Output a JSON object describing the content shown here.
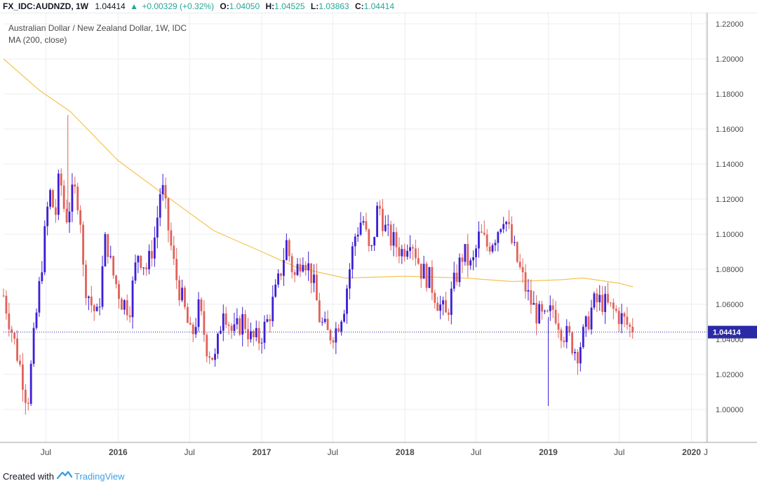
{
  "header": {
    "symbol": "FX_IDC:AUDNZD, 1W",
    "last": "1.04414",
    "change": "+0.00329 (+0.32%)",
    "o_label": "O:",
    "o_value": "1.04050",
    "h_label": "H:",
    "h_value": "1.04525",
    "l_label": "L:",
    "l_value": "1.03863",
    "c_label": "C:",
    "c_value": "1.04414"
  },
  "legend": {
    "title": "Australian Dollar / New Zealand Dollar, 1W, IDC",
    "indicator": "MA (200, close)"
  },
  "footer": {
    "created_with": "Created with",
    "brand": "TradingView"
  },
  "colors": {
    "up": "#3d1fd6",
    "down": "#e0625a",
    "ma": "#f5c451",
    "grid": "#e9edf2",
    "price_line": "#2a2aa6",
    "price_tag": "#2a2aa6"
  },
  "chart_data": {
    "type": "candlestick",
    "title": "Australian Dollar / New Zealand Dollar, 1W, IDC",
    "interval": "1W",
    "y_ticks": [
      "1.22000",
      "1.20000",
      "1.18000",
      "1.16000",
      "1.14000",
      "1.12000",
      "1.10000",
      "1.08000",
      "1.06000",
      "1.04000",
      "1.02000",
      "1.00000"
    ],
    "x_ticks": [
      "Jul",
      "2016",
      "Jul",
      "2017",
      "Jul",
      "2018",
      "Jul",
      "2019",
      "Jul",
      "2020",
      "J"
    ],
    "ylim": [
      0.98,
      1.223
    ],
    "last_price": 1.04414,
    "last_price_label": "1.04414",
    "ma_label": "MA (200, close)",
    "ma": [
      {
        "t": "2015-03-15",
        "v": 1.2
      },
      {
        "t": "2015-06-15",
        "v": 1.182
      },
      {
        "t": "2015-09-01",
        "v": 1.17
      },
      {
        "t": "2016-01-01",
        "v": 1.142
      },
      {
        "t": "2016-05-01",
        "v": 1.122
      },
      {
        "t": "2016-09-01",
        "v": 1.102
      },
      {
        "t": "2017-01-01",
        "v": 1.09
      },
      {
        "t": "2017-04-01",
        "v": 1.081
      },
      {
        "t": "2017-08-01",
        "v": 1.075
      },
      {
        "t": "2018-01-01",
        "v": 1.076
      },
      {
        "t": "2018-06-01",
        "v": 1.075
      },
      {
        "t": "2018-10-01",
        "v": 1.073
      },
      {
        "t": "2019-02-01",
        "v": 1.074
      },
      {
        "t": "2019-04-01",
        "v": 1.075
      },
      {
        "t": "2019-07-01",
        "v": 1.072
      },
      {
        "t": "2019-08-05",
        "v": 1.07
      }
    ],
    "path": [
      [
        "2015-03-15",
        1.065
      ],
      [
        "2015-04-05",
        1.045
      ],
      [
        "2015-05-01",
        1.02
      ],
      [
        "2015-05-15",
        1.003
      ],
      [
        "2015-06-01",
        1.042
      ],
      [
        "2015-06-20",
        1.082
      ],
      [
        "2015-07-10",
        1.125
      ],
      [
        "2015-07-25",
        1.11
      ],
      [
        "2015-08-05",
        1.135
      ],
      [
        "2015-08-20",
        1.108
      ],
      [
        "2015-09-10",
        1.125
      ],
      [
        "2015-09-25",
        1.118
      ],
      [
        "2015-10-05",
        1.075
      ],
      [
        "2015-10-25",
        1.06
      ],
      [
        "2015-11-10",
        1.052
      ],
      [
        "2015-12-01",
        1.1
      ],
      [
        "2015-12-15",
        1.08
      ],
      [
        "2016-01-10",
        1.062
      ],
      [
        "2016-01-30",
        1.058
      ],
      [
        "2016-02-20",
        1.09
      ],
      [
        "2016-03-15",
        1.08
      ],
      [
        "2016-04-05",
        1.1
      ],
      [
        "2016-04-20",
        1.13
      ],
      [
        "2016-05-10",
        1.1
      ],
      [
        "2016-05-25",
        1.078
      ],
      [
        "2016-06-15",
        1.06
      ],
      [
        "2016-07-05",
        1.04
      ],
      [
        "2016-07-25",
        1.058
      ],
      [
        "2016-08-15",
        1.035
      ],
      [
        "2016-09-05",
        1.028
      ],
      [
        "2016-09-25",
        1.06
      ],
      [
        "2016-10-20",
        1.042
      ],
      [
        "2016-11-15",
        1.052
      ],
      [
        "2016-12-05",
        1.04
      ],
      [
        "2016-12-25",
        1.04
      ],
      [
        "2017-01-15",
        1.05
      ],
      [
        "2017-02-10",
        1.07
      ],
      [
        "2017-03-05",
        1.095
      ],
      [
        "2017-03-25",
        1.075
      ],
      [
        "2017-04-15",
        1.09
      ],
      [
        "2017-05-10",
        1.075
      ],
      [
        "2017-05-30",
        1.05
      ],
      [
        "2017-06-20",
        1.042
      ],
      [
        "2017-07-10",
        1.046
      ],
      [
        "2017-07-30",
        1.06
      ],
      [
        "2017-08-25",
        1.098
      ],
      [
        "2017-09-15",
        1.11
      ],
      [
        "2017-10-05",
        1.085
      ],
      [
        "2017-10-25",
        1.118
      ],
      [
        "2017-11-15",
        1.1
      ],
      [
        "2017-12-05",
        1.095
      ],
      [
        "2017-12-25",
        1.09
      ],
      [
        "2018-01-15",
        1.1
      ],
      [
        "2018-02-10",
        1.08
      ],
      [
        "2018-03-05",
        1.074
      ],
      [
        "2018-03-25",
        1.062
      ],
      [
        "2018-04-15",
        1.053
      ],
      [
        "2018-05-10",
        1.075
      ],
      [
        "2018-05-30",
        1.09
      ],
      [
        "2018-06-20",
        1.08
      ],
      [
        "2018-07-10",
        1.1
      ],
      [
        "2018-07-30",
        1.093
      ],
      [
        "2018-08-20",
        1.1
      ],
      [
        "2018-09-10",
        1.112
      ],
      [
        "2018-09-30",
        1.095
      ],
      [
        "2018-10-20",
        1.08
      ],
      [
        "2018-11-10",
        1.065
      ],
      [
        "2018-12-01",
        1.055
      ],
      [
        "2018-12-25",
        1.05
      ],
      [
        "2019-01-15",
        1.058
      ],
      [
        "2019-02-05",
        1.045
      ],
      [
        "2019-02-25",
        1.04
      ],
      [
        "2019-03-15",
        1.032
      ],
      [
        "2019-04-05",
        1.045
      ],
      [
        "2019-04-25",
        1.06
      ],
      [
        "2019-05-15",
        1.062
      ],
      [
        "2019-06-05",
        1.058
      ],
      [
        "2019-06-25",
        1.055
      ],
      [
        "2019-07-15",
        1.05
      ],
      [
        "2019-08-05",
        1.044
      ]
    ],
    "special_wicks": [
      {
        "t": "2015-08-26",
        "high": 1.168
      },
      {
        "t": "2019-01-01",
        "low": 1.002
      }
    ]
  }
}
